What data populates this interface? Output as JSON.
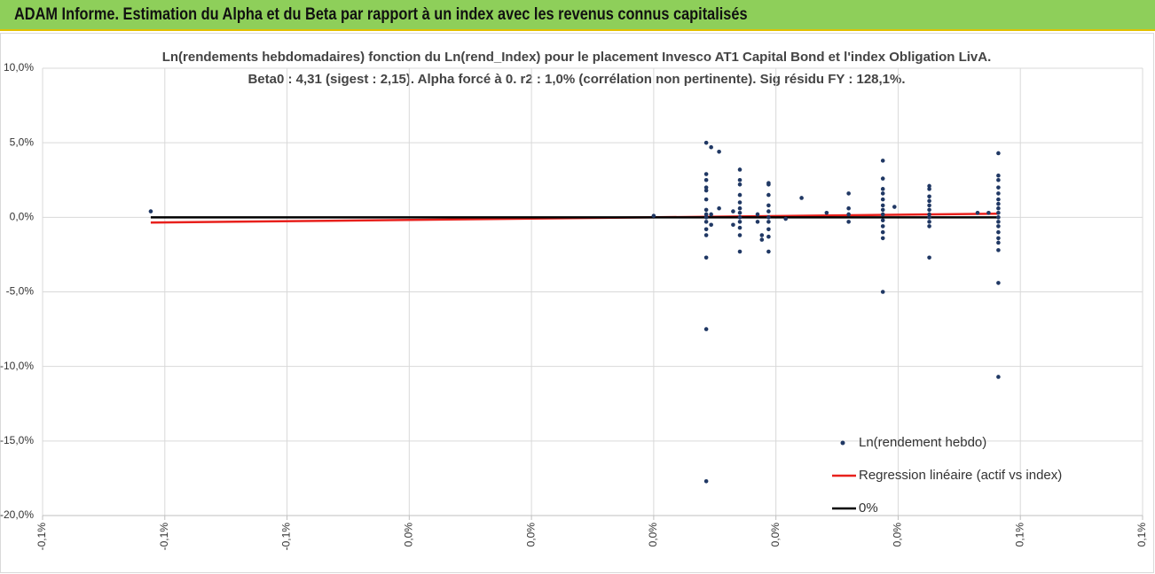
{
  "header": {
    "title": "ADAM Informe. Estimation du Alpha et du Beta par rapport à un index avec les revenus connus capitalisés"
  },
  "chart_data": {
    "type": "scatter",
    "title": "Ln(rendements hebdomadaires) fonction du Ln(rend_Index) pour le placement Invesco AT1 Capital Bond  et l'index Obligation LivA.",
    "subtitle": "Beta0 : 4,31 (sigest : 2,15).  Alpha forcé à 0. r2 : 1,0% (corrélation non pertinente). Sig résidu FY : 128,1%.",
    "xlim": [
      -0.1,
      0.08
    ],
    "xticks": [
      {
        "value": -0.1,
        "label": "-0,1%"
      },
      {
        "value": -0.08,
        "label": "-0,1%"
      },
      {
        "value": -0.06,
        "label": "-0,1%"
      },
      {
        "value": -0.04,
        "label": "0,0%"
      },
      {
        "value": -0.02,
        "label": "0,0%"
      },
      {
        "value": 0,
        "label": "0,0%"
      },
      {
        "value": 0.02,
        "label": "0,0%"
      },
      {
        "value": 0.04,
        "label": "0,0%"
      },
      {
        "value": 0.06,
        "label": "0,1%"
      },
      {
        "value": 0.08,
        "label": "0,1%"
      }
    ],
    "ylim": [
      -20,
      10
    ],
    "yticks": [
      {
        "value": 10,
        "label": "10,0%"
      },
      {
        "value": 5,
        "label": "5,0%"
      },
      {
        "value": 0,
        "label": "0,0%"
      },
      {
        "value": -5,
        "label": "-5,0%"
      },
      {
        "value": -10,
        "label": "-10,0%"
      },
      {
        "value": -15,
        "label": "-15,0%"
      },
      {
        "value": -20,
        "label": "-20,0%"
      }
    ],
    "grid": true,
    "legend": "lower right",
    "series": [
      {
        "name": "Ln(rendement hebdo)",
        "color": "#203864",
        "kind": "scatter",
        "x": [
          -0.0823,
          0,
          0.0086,
          0.0086,
          0.0086,
          0.0086,
          0.0086,
          0.0086,
          0.0086,
          0.0086,
          0.0086,
          0.0086,
          0.0086,
          0.0086,
          0.0086,
          0.0086,
          0.0086,
          0.0094,
          0.0094,
          0.0094,
          0.0107,
          0.0107,
          0.0141,
          0.0141,
          0.0141,
          0.0141,
          0.0141,
          0.0141,
          0.0141,
          0.0141,
          0.0141,
          0.0141,
          0.0141,
          0.0141,
          0.013,
          0.013,
          0.017,
          0.017,
          0.0177,
          0.0177,
          0.0188,
          0.0188,
          0.0188,
          0.0188,
          0.0188,
          0.0188,
          0.0188,
          0.0188,
          0.0188,
          0.0188,
          0.0216,
          0.0242,
          0.0283,
          0.0319,
          0.0319,
          0.0319,
          0.0319,
          0.0375,
          0.0375,
          0.0375,
          0.0375,
          0.0375,
          0.0375,
          0.0375,
          0.0375,
          0.0375,
          0.0375,
          0.0375,
          0.0375,
          0.0375,
          0.0394,
          0.0451,
          0.0451,
          0.0451,
          0.0451,
          0.0451,
          0.0451,
          0.0451,
          0.0451,
          0.0451,
          0.0451,
          0.0451,
          0.053,
          0.0548,
          0.0564,
          0.0564,
          0.0564,
          0.0564,
          0.0564,
          0.0564,
          0.0564,
          0.0564,
          0.0564,
          0.0564,
          0.0564,
          0.0564,
          0.0564,
          0.0564,
          0.0564,
          0.0564,
          0.0564,
          0.0564
        ],
        "values": [
          0.4,
          0.1,
          5.0,
          2.9,
          2.5,
          2.0,
          1.8,
          1.2,
          0.5,
          0.2,
          0,
          -0.3,
          -0.8,
          -1.2,
          -2.7,
          -7.5,
          -17.7,
          4.7,
          0.2,
          -0.5,
          4.4,
          0.6,
          3.2,
          2.5,
          2.2,
          1.5,
          1.0,
          0.6,
          0.3,
          0,
          -0.3,
          -0.7,
          -1.2,
          -2.3,
          0.4,
          -0.5,
          0.2,
          -0.3,
          -1.2,
          -1.5,
          2.3,
          2.2,
          1.5,
          0.8,
          0.4,
          0,
          -0.3,
          -0.8,
          -1.3,
          -2.3,
          -0.1,
          1.3,
          0.3,
          1.6,
          0.6,
          0.2,
          -0.3,
          3.8,
          2.6,
          1.9,
          1.6,
          1.2,
          0.8,
          0.5,
          0.2,
          -0.2,
          -0.6,
          -1.0,
          -1.4,
          -5.0,
          0.7,
          2.1,
          1.9,
          1.4,
          1.1,
          0.8,
          0.5,
          0.2,
          0,
          -0.3,
          -0.6,
          -2.7,
          0.3,
          0.3,
          4.3,
          2.8,
          2.5,
          2.0,
          1.6,
          1.2,
          0.9,
          0.6,
          0.3,
          0,
          -0.3,
          -0.6,
          -1.0,
          -1.4,
          -1.7,
          -2.2,
          -4.4,
          -10.7
        ]
      },
      {
        "name": "Regression linéaire (actif vs index)",
        "color": "#e8201c",
        "kind": "line",
        "x": [
          -0.0823,
          0.0564
        ],
        "values": [
          -0.355,
          0.243
        ]
      },
      {
        "name": "0%",
        "color": "#000000",
        "kind": "line",
        "x": [
          -0.0823,
          0.0564
        ],
        "values": [
          0,
          0
        ]
      }
    ]
  }
}
